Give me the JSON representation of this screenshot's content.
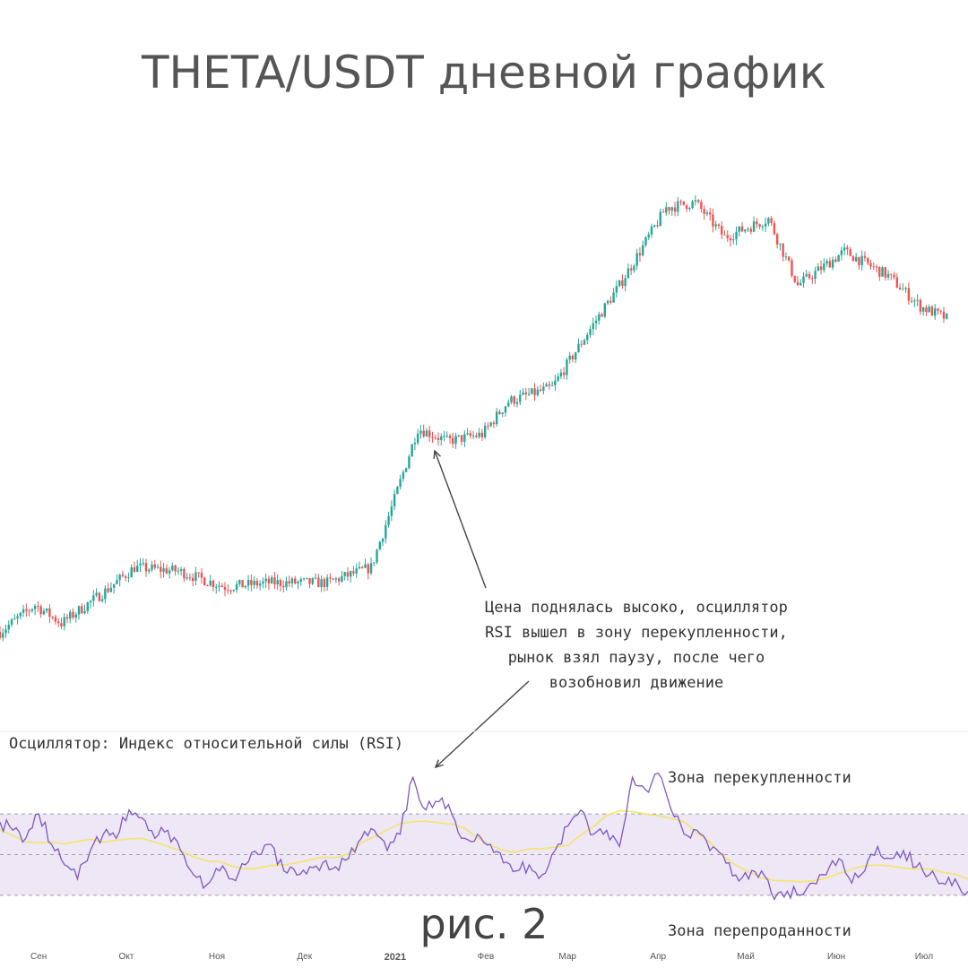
{
  "title": "THETA/USDT дневной график",
  "caption": "рис. 2",
  "annotation": {
    "lines": [
      "Цена поднялась высоко, осциллятор",
      "RSI вышел в зону перекупленности,",
      "рынок взял паузу, после чего",
      "возобновил движение"
    ]
  },
  "rsi_panel": {
    "title": "Осциллятор: Индекс относительной силы (RSI)",
    "overbought_label": "Зона перекупленности",
    "oversold_label": "Зона перепроданности"
  },
  "colors": {
    "up": "#26a69a",
    "down": "#ef5350",
    "rsi_line": "#7e57c2",
    "rsi_ma": "#f5e36b",
    "rsi_band": "#ede7f6",
    "arrow": "#444444"
  },
  "chart_data": [
    {
      "type": "candlestick",
      "title": "THETA/USDT дневной график",
      "x_axis": {
        "ticks": [
          "Сен",
          "Окт",
          "Ноя",
          "Дек",
          "2021",
          "Фев",
          "Мар",
          "Апр",
          "Май",
          "Июн",
          "Июл"
        ]
      },
      "price_path": [
        {
          "date": "2020-08-20",
          "close": 0.42
        },
        {
          "date": "2020-09-01",
          "close": 0.52
        },
        {
          "date": "2020-09-10",
          "close": 0.45
        },
        {
          "date": "2020-09-25",
          "close": 0.58
        },
        {
          "date": "2020-10-05",
          "close": 0.7
        },
        {
          "date": "2020-10-20",
          "close": 0.68
        },
        {
          "date": "2020-11-05",
          "close": 0.6
        },
        {
          "date": "2020-11-20",
          "close": 0.62
        },
        {
          "date": "2020-12-10",
          "close": 0.62
        },
        {
          "date": "2020-12-25",
          "close": 0.7
        },
        {
          "date": "2021-01-02",
          "close": 1.2
        },
        {
          "date": "2021-01-10",
          "close": 2.1
        },
        {
          "date": "2021-01-20",
          "close": 1.9
        },
        {
          "date": "2021-02-01",
          "close": 2.0
        },
        {
          "date": "2021-02-10",
          "close": 2.6
        },
        {
          "date": "2021-02-25",
          "close": 2.9
        },
        {
          "date": "2021-03-10",
          "close": 4.6
        },
        {
          "date": "2021-03-20",
          "close": 6.5
        },
        {
          "date": "2021-04-05",
          "close": 12.0
        },
        {
          "date": "2021-04-15",
          "close": 12.5
        },
        {
          "date": "2021-04-25",
          "close": 9.5
        },
        {
          "date": "2021-05-10",
          "close": 11.0
        },
        {
          "date": "2021-05-20",
          "close": 6.5
        },
        {
          "date": "2021-06-05",
          "close": 8.5
        },
        {
          "date": "2021-06-20",
          "close": 7.0
        },
        {
          "date": "2021-07-01",
          "close": 5.5
        },
        {
          "date": "2021-07-10",
          "close": 5.0
        }
      ]
    },
    {
      "type": "line",
      "title": "Осциллятор: Индекс относительной силы (RSI)",
      "ylim": [
        0,
        100
      ],
      "levels": {
        "overbought": 70,
        "middle": 50,
        "oversold": 30
      },
      "series": [
        {
          "name": "RSI",
          "values": [
            66,
            62,
            58,
            70,
            55,
            45,
            38,
            52,
            60,
            58,
            72,
            68,
            58,
            62,
            52,
            40,
            35,
            42,
            38,
            45,
            50,
            55,
            42,
            40,
            44,
            46,
            44,
            48,
            58,
            62,
            52,
            60,
            88,
            72,
            76,
            70,
            58,
            60,
            55,
            46,
            42,
            45,
            40,
            52,
            64,
            72,
            60,
            62,
            54,
            88,
            82,
            90,
            72,
            60,
            62,
            52,
            50,
            40,
            38,
            42,
            28,
            32,
            30,
            36,
            40,
            48,
            36,
            42,
            54,
            48,
            52,
            44,
            40,
            36,
            38,
            32
          ]
        }
      ]
    }
  ]
}
